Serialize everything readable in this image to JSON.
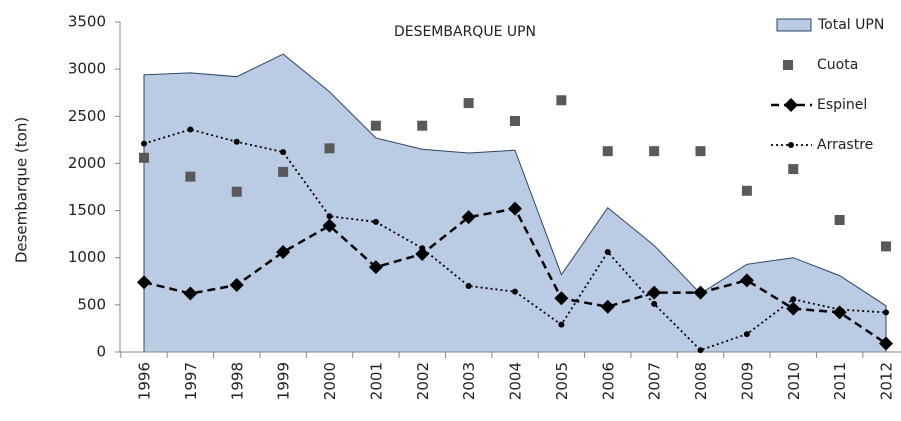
{
  "chart_data": {
    "type": "line",
    "title": "DESEMBARQUE UPN",
    "y_label": "Desembarque (ton)",
    "categories": [
      "1996",
      "1997",
      "1998",
      "1999",
      "2000",
      "2001",
      "2002",
      "2003",
      "2004",
      "2005",
      "2006",
      "2007",
      "2008",
      "2009",
      "2010",
      "2011",
      "2012"
    ],
    "ylim": [
      0,
      3500
    ],
    "yticks": [
      0,
      500,
      1000,
      1500,
      2000,
      2500,
      3000,
      3500
    ],
    "series": [
      {
        "name": "Total UPN",
        "kind": "area",
        "color": "#b9cce4",
        "values": [
          2940,
          2960,
          2920,
          3160,
          2760,
          2270,
          2150,
          2110,
          2140,
          820,
          1530,
          1130,
          620,
          930,
          1000,
          810,
          490
        ]
      },
      {
        "name": "Cuota",
        "kind": "square",
        "color": "#595959",
        "values": [
          2060,
          1860,
          1700,
          1910,
          2160,
          2400,
          2400,
          2640,
          2450,
          2670,
          2130,
          2130,
          2130,
          1710,
          1940,
          1400,
          1120
        ]
      },
      {
        "name": "Espinel",
        "kind": "diamond-dash",
        "color": "#000000",
        "values": [
          740,
          620,
          710,
          1060,
          1340,
          900,
          1040,
          1430,
          1520,
          570,
          480,
          630,
          630,
          760,
          460,
          420,
          90
        ]
      },
      {
        "name": "Arrastre",
        "kind": "dot-dotted",
        "color": "#000000",
        "values": [
          2210,
          2360,
          2230,
          2120,
          1440,
          1380,
          1100,
          700,
          640,
          290,
          1060,
          510,
          20,
          190,
          560,
          450,
          420
        ]
      }
    ]
  }
}
